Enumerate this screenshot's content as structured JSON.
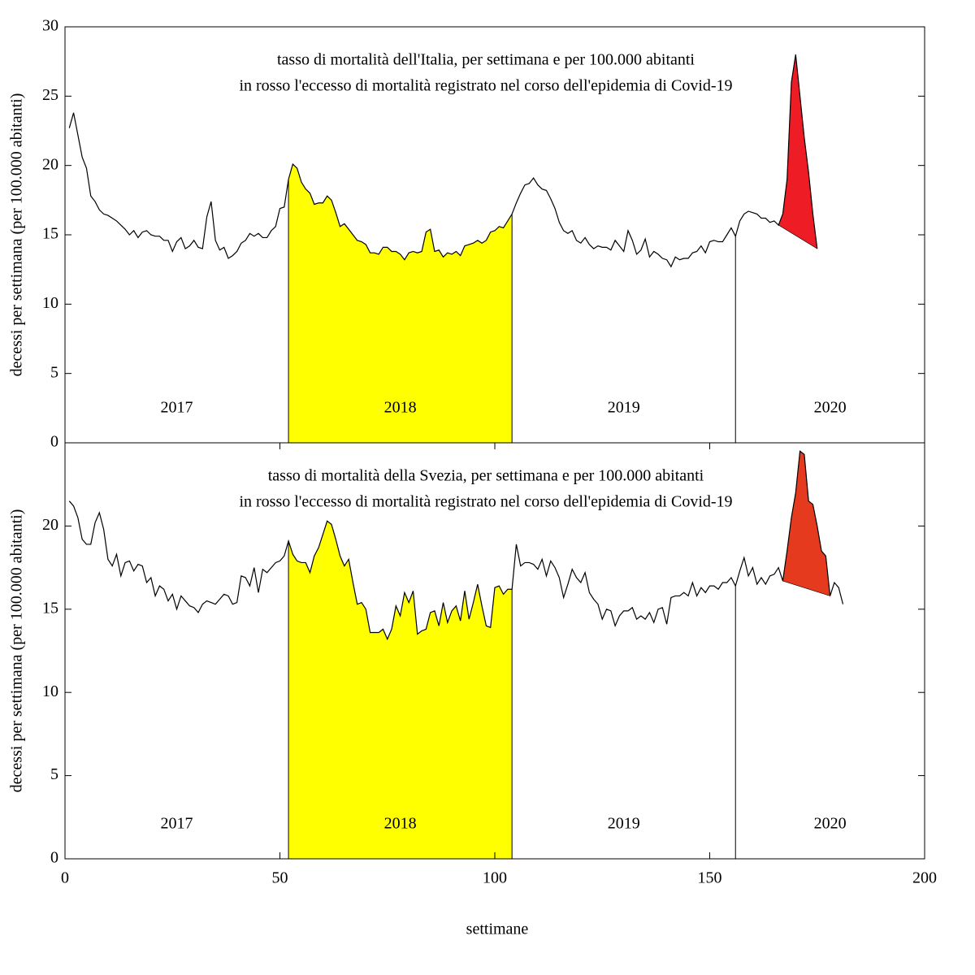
{
  "chart_data": [
    {
      "type": "line",
      "title": [
        "tasso di mortalità dell'Italia, per settimana e per 100.000 abitanti",
        "in rosso l'eccesso di mortalità registrato nel corso dell'epidemia di Covid-19"
      ],
      "ylabel": "decessi per settimana (per 100.000 abitanti)",
      "xlim": [
        0,
        200
      ],
      "ylim": [
        0,
        30
      ],
      "yticks": [
        0,
        5,
        10,
        15,
        20,
        25,
        30
      ],
      "vlines": [
        52,
        104,
        156
      ],
      "years": [
        "2017",
        "2018",
        "2019",
        "2020"
      ],
      "highlight": {
        "color": "#ffff00",
        "from": 52,
        "to": 104
      },
      "excess": {
        "color": "#ee1c25",
        "from": 166,
        "to": 175
      },
      "series": [
        {
          "color": "#000000",
          "x": [
            1,
            2,
            3,
            4,
            5,
            6,
            7,
            8,
            9,
            10,
            11,
            12,
            13,
            14,
            15,
            16,
            17,
            18,
            19,
            20,
            21,
            22,
            23,
            24,
            25,
            26,
            27,
            28,
            29,
            30,
            31,
            32,
            33,
            34,
            35,
            36,
            37,
            38,
            39,
            40,
            41,
            42,
            43,
            44,
            45,
            46,
            47,
            48,
            49,
            50,
            51,
            52,
            53,
            54,
            55,
            56,
            57,
            58,
            59,
            60,
            61,
            62,
            63,
            64,
            65,
            66,
            67,
            68,
            69,
            70,
            71,
            72,
            73,
            74,
            75,
            76,
            77,
            78,
            79,
            80,
            81,
            82,
            83,
            84,
            85,
            86,
            87,
            88,
            89,
            90,
            91,
            92,
            93,
            94,
            95,
            96,
            97,
            98,
            99,
            100,
            101,
            102,
            103,
            104,
            105,
            106,
            107,
            108,
            109,
            110,
            111,
            112,
            113,
            114,
            115,
            116,
            117,
            118,
            119,
            120,
            121,
            122,
            123,
            124,
            125,
            126,
            127,
            128,
            129,
            130,
            131,
            132,
            133,
            134,
            135,
            136,
            137,
            138,
            139,
            140,
            141,
            142,
            143,
            144,
            145,
            146,
            147,
            148,
            149,
            150,
            151,
            152,
            153,
            154,
            155,
            156,
            157,
            158,
            159,
            160,
            161,
            162,
            163,
            164,
            165,
            166,
            167,
            168,
            169,
            170,
            171,
            172,
            173,
            174,
            175
          ],
          "values": [
            22.7,
            23.8,
            22.2,
            20.6,
            19.8,
            17.8,
            17.4,
            16.8,
            16.5,
            16.4,
            16.2,
            16.0,
            15.7,
            15.4,
            15.0,
            15.3,
            14.8,
            15.2,
            15.3,
            15.0,
            14.9,
            14.9,
            14.6,
            14.6,
            13.8,
            14.5,
            14.8,
            14.0,
            14.2,
            14.6,
            14.1,
            14.0,
            16.3,
            17.4,
            14.6,
            13.9,
            14.1,
            13.3,
            13.5,
            13.8,
            14.4,
            14.6,
            15.1,
            14.9,
            15.1,
            14.8,
            14.8,
            15.3,
            15.6,
            16.9,
            17.0,
            19.0,
            20.1,
            19.8,
            18.8,
            18.3,
            18.0,
            17.2,
            17.3,
            17.3,
            17.8,
            17.5,
            16.6,
            15.6,
            15.8,
            15.4,
            15.0,
            14.6,
            14.5,
            14.3,
            13.7,
            13.7,
            13.6,
            14.1,
            14.1,
            13.8,
            13.8,
            13.6,
            13.2,
            13.7,
            13.8,
            13.7,
            13.8,
            15.2,
            15.4,
            13.8,
            13.9,
            13.4,
            13.7,
            13.6,
            13.8,
            13.5,
            14.2,
            14.3,
            14.4,
            14.6,
            14.4,
            14.6,
            15.2,
            15.3,
            15.6,
            15.5,
            16.0,
            16.5,
            17.3,
            18.0,
            18.6,
            18.7,
            19.1,
            18.6,
            18.3,
            18.2,
            17.6,
            16.9,
            15.9,
            15.3,
            15.1,
            15.3,
            14.6,
            14.4,
            14.8,
            14.3,
            14.0,
            14.2,
            14.1,
            14.1,
            13.9,
            14.6,
            14.2,
            13.8,
            15.3,
            14.6,
            13.6,
            13.9,
            14.7,
            13.4,
            13.8,
            13.6,
            13.3,
            13.2,
            12.7,
            13.4,
            13.2,
            13.3,
            13.3,
            13.7,
            13.8,
            14.2,
            13.7,
            14.5,
            14.6,
            14.5,
            14.5,
            15.0,
            15.5,
            14.9,
            16.0,
            16.5,
            16.7,
            16.6,
            16.5,
            16.2,
            16.2,
            15.9,
            16.0,
            15.7,
            16.5,
            19.0,
            26.0,
            28.0,
            25.0,
            22.0,
            19.5,
            16.5,
            14.0
          ]
        }
      ]
    },
    {
      "type": "line",
      "title": [
        "tasso di mortalità della Svezia, per settimana e per 100.000 abitanti",
        "in rosso l'eccesso di mortalità registrato nel corso dell'epidemia di Covid-19"
      ],
      "ylabel": "decessi per settimana (per 100.000 abitanti)",
      "xlabel": "settimane",
      "xlim": [
        0,
        200
      ],
      "xticks": [
        0,
        50,
        100,
        150,
        200
      ],
      "ylim": [
        0,
        25
      ],
      "yticks": [
        0,
        5,
        10,
        15,
        20
      ],
      "vlines": [
        52,
        104,
        156
      ],
      "years": [
        "2017",
        "2018",
        "2019",
        "2020"
      ],
      "highlight": {
        "color": "#ffff00",
        "from": 52,
        "to": 104
      },
      "excess": {
        "color": "#e63a1f",
        "from": 167,
        "to": 178
      },
      "series": [
        {
          "color": "#000000",
          "x": [
            1,
            2,
            3,
            4,
            5,
            6,
            7,
            8,
            9,
            10,
            11,
            12,
            13,
            14,
            15,
            16,
            17,
            18,
            19,
            20,
            21,
            22,
            23,
            24,
            25,
            26,
            27,
            28,
            29,
            30,
            31,
            32,
            33,
            34,
            35,
            36,
            37,
            38,
            39,
            40,
            41,
            42,
            43,
            44,
            45,
            46,
            47,
            48,
            49,
            50,
            51,
            52,
            53,
            54,
            55,
            56,
            57,
            58,
            59,
            60,
            61,
            62,
            63,
            64,
            65,
            66,
            67,
            68,
            69,
            70,
            71,
            72,
            73,
            74,
            75,
            76,
            77,
            78,
            79,
            80,
            81,
            82,
            83,
            84,
            85,
            86,
            87,
            88,
            89,
            90,
            91,
            92,
            93,
            94,
            95,
            96,
            97,
            98,
            99,
            100,
            101,
            102,
            103,
            104,
            105,
            106,
            107,
            108,
            109,
            110,
            111,
            112,
            113,
            114,
            115,
            116,
            117,
            118,
            119,
            120,
            121,
            122,
            123,
            124,
            125,
            126,
            127,
            128,
            129,
            130,
            131,
            132,
            133,
            134,
            135,
            136,
            137,
            138,
            139,
            140,
            141,
            142,
            143,
            144,
            145,
            146,
            147,
            148,
            149,
            150,
            151,
            152,
            153,
            154,
            155,
            156,
            157,
            158,
            159,
            160,
            161,
            162,
            163,
            164,
            165,
            166,
            167,
            168,
            169,
            170,
            171,
            172,
            173,
            174,
            175,
            176,
            177,
            178,
            179,
            180,
            181
          ],
          "values": [
            21.5,
            21.2,
            20.5,
            19.2,
            18.9,
            18.9,
            20.2,
            20.8,
            19.8,
            18.0,
            17.6,
            18.3,
            17.0,
            17.8,
            17.9,
            17.3,
            17.7,
            17.6,
            16.6,
            16.9,
            15.8,
            16.4,
            16.2,
            15.5,
            15.9,
            15.0,
            15.8,
            15.5,
            15.2,
            15.1,
            14.8,
            15.3,
            15.5,
            15.4,
            15.3,
            15.6,
            15.9,
            15.8,
            15.3,
            15.4,
            17.0,
            16.9,
            16.4,
            17.5,
            16.0,
            17.4,
            17.2,
            17.5,
            17.8,
            17.9,
            18.2,
            19.1,
            18.3,
            17.9,
            17.8,
            17.8,
            17.2,
            18.2,
            18.7,
            19.5,
            20.3,
            20.1,
            19.2,
            18.2,
            17.6,
            18.0,
            16.6,
            15.3,
            15.4,
            15.0,
            13.6,
            13.6,
            13.6,
            13.8,
            13.2,
            13.8,
            15.2,
            14.6,
            16.0,
            15.4,
            16.1,
            13.5,
            13.7,
            13.8,
            14.8,
            14.9,
            14.0,
            15.4,
            14.2,
            14.9,
            15.2,
            14.3,
            16.1,
            14.4,
            15.4,
            16.5,
            15.2,
            14.0,
            13.9,
            16.3,
            16.4,
            15.9,
            16.2,
            16.2,
            18.9,
            17.6,
            17.8,
            17.8,
            17.7,
            17.4,
            18.0,
            17.0,
            17.9,
            17.5,
            16.9,
            15.7,
            16.5,
            17.4,
            16.9,
            16.6,
            17.2,
            16.0,
            15.6,
            15.3,
            14.4,
            15.0,
            14.9,
            14.0,
            14.6,
            14.9,
            14.9,
            15.1,
            14.4,
            14.6,
            14.4,
            14.8,
            14.2,
            15.0,
            15.1,
            14.1,
            15.7,
            15.8,
            15.8,
            16.0,
            15.8,
            16.6,
            15.8,
            16.3,
            16.0,
            16.4,
            16.4,
            16.2,
            16.6,
            16.6,
            16.9,
            16.4,
            17.3,
            18.1,
            17.0,
            17.5,
            16.5,
            16.9,
            16.5,
            17.0,
            17.1,
            17.5,
            16.7,
            18.5,
            20.5,
            22.0,
            24.5,
            24.3,
            21.5,
            21.3,
            20.0,
            18.5,
            18.2,
            15.8,
            16.6,
            16.3,
            15.3
          ]
        }
      ]
    }
  ]
}
